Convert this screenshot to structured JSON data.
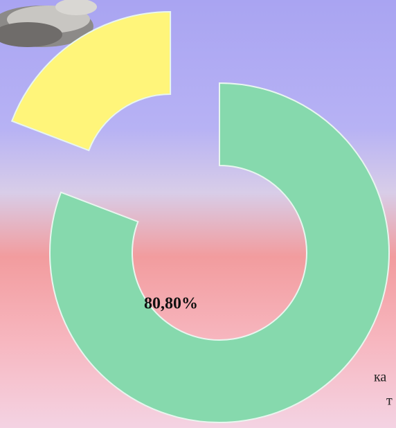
{
  "chart_data": {
    "type": "donut",
    "values": [
      80.8,
      19.2
    ],
    "value_labels": [
      "80,80%",
      null
    ],
    "colors": [
      "#86d9ad",
      "#fff57a"
    ],
    "exploded": [
      false,
      true
    ],
    "background_text": [
      "ка",
      "т"
    ]
  }
}
